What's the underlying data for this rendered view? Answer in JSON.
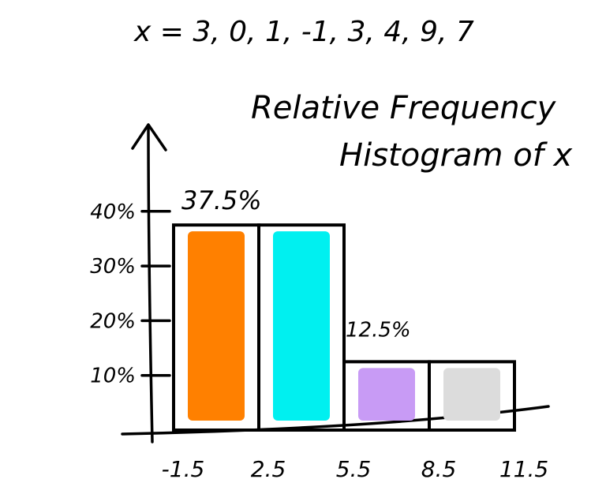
{
  "dataset_line": "x = 3, 0, 1, -1, 3, 4, 9, 7",
  "chart_data": {
    "type": "bar",
    "title_line1": "Relative Frequency",
    "title_line2": "Histogram of x",
    "bin_edges": [
      "-1.5",
      "2.5",
      "5.5",
      "8.5",
      "11.5"
    ],
    "bin_edges_values": [
      -1.5,
      2.5,
      5.5,
      8.5,
      11.5
    ],
    "values": [
      37.5,
      37.5,
      12.5,
      12.5
    ],
    "y_ticks": [
      "10%",
      "20%",
      "30%",
      "40%"
    ],
    "y_tick_values": [
      10,
      20,
      30,
      40
    ],
    "ylim": [
      0,
      50
    ],
    "annotations": [
      {
        "text": "37.5%",
        "value": 37.5
      },
      {
        "text": "12.5%",
        "value": 12.5
      }
    ],
    "bar_colors": [
      "#ff8000",
      "#00f0f0",
      "#c89bf5",
      "#dcdcdc"
    ]
  }
}
